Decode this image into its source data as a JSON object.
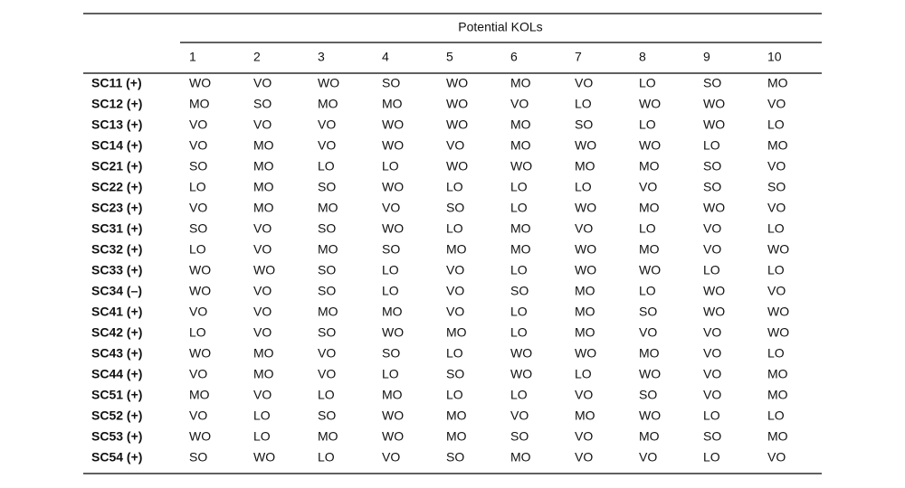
{
  "table": {
    "group_header": "Potential KOLs",
    "columns": [
      "1",
      "2",
      "3",
      "4",
      "5",
      "6",
      "7",
      "8",
      "9",
      "10"
    ],
    "rows": [
      {
        "label": "SC11 (+)",
        "cells": [
          "WO",
          "VO",
          "WO",
          "SO",
          "WO",
          "MO",
          "VO",
          "LO",
          "SO",
          "MO"
        ]
      },
      {
        "label": "SC12 (+)",
        "cells": [
          "MO",
          "SO",
          "MO",
          "MO",
          "WO",
          "VO",
          "LO",
          "WO",
          "WO",
          "VO"
        ]
      },
      {
        "label": "SC13 (+)",
        "cells": [
          "VO",
          "VO",
          "VO",
          "WO",
          "WO",
          "MO",
          "SO",
          "LO",
          "WO",
          "LO"
        ]
      },
      {
        "label": "SC14 (+)",
        "cells": [
          "VO",
          "MO",
          "VO",
          "WO",
          "VO",
          "MO",
          "WO",
          "WO",
          "LO",
          "MO"
        ]
      },
      {
        "label": "SC21 (+)",
        "cells": [
          "SO",
          "MO",
          "LO",
          "LO",
          "WO",
          "WO",
          "MO",
          "MO",
          "SO",
          "VO"
        ]
      },
      {
        "label": "SC22 (+)",
        "cells": [
          "LO",
          "MO",
          "SO",
          "WO",
          "LO",
          "LO",
          "LO",
          "VO",
          "SO",
          "SO"
        ]
      },
      {
        "label": "SC23 (+)",
        "cells": [
          "VO",
          "MO",
          "MO",
          "VO",
          "SO",
          "LO",
          "WO",
          "MO",
          "WO",
          "VO"
        ]
      },
      {
        "label": "SC31 (+)",
        "cells": [
          "SO",
          "VO",
          "SO",
          "WO",
          "LO",
          "MO",
          "VO",
          "LO",
          "VO",
          "LO"
        ]
      },
      {
        "label": "SC32 (+)",
        "cells": [
          "LO",
          "VO",
          "MO",
          "SO",
          "MO",
          "MO",
          "WO",
          "MO",
          "VO",
          "WO"
        ]
      },
      {
        "label": "SC33 (+)",
        "cells": [
          "WO",
          "WO",
          "SO",
          "LO",
          "VO",
          "LO",
          "WO",
          "WO",
          "LO",
          "LO"
        ]
      },
      {
        "label": "SC34 (–)",
        "cells": [
          "WO",
          "VO",
          "SO",
          "LO",
          "VO",
          "SO",
          "MO",
          "LO",
          "WO",
          "VO"
        ]
      },
      {
        "label": "SC41 (+)",
        "cells": [
          "VO",
          "VO",
          "MO",
          "MO",
          "VO",
          "LO",
          "MO",
          "SO",
          "WO",
          "WO"
        ]
      },
      {
        "label": "SC42 (+)",
        "cells": [
          "LO",
          "VO",
          "SO",
          "WO",
          "MO",
          "LO",
          "MO",
          "VO",
          "VO",
          "WO"
        ]
      },
      {
        "label": "SC43 (+)",
        "cells": [
          "WO",
          "MO",
          "VO",
          "SO",
          "LO",
          "WO",
          "WO",
          "MO",
          "VO",
          "LO"
        ]
      },
      {
        "label": "SC44 (+)",
        "cells": [
          "VO",
          "MO",
          "VO",
          "LO",
          "SO",
          "WO",
          "LO",
          "WO",
          "VO",
          "MO"
        ]
      },
      {
        "label": "SC51 (+)",
        "cells": [
          "MO",
          "VO",
          "LO",
          "MO",
          "LO",
          "LO",
          "VO",
          "SO",
          "VO",
          "MO"
        ]
      },
      {
        "label": "SC52 (+)",
        "cells": [
          "VO",
          "LO",
          "SO",
          "WO",
          "MO",
          "VO",
          "MO",
          "WO",
          "LO",
          "LO"
        ]
      },
      {
        "label": "SC53 (+)",
        "cells": [
          "WO",
          "LO",
          "MO",
          "WO",
          "MO",
          "SO",
          "VO",
          "MO",
          "SO",
          "MO"
        ]
      },
      {
        "label": "SC54 (+)",
        "cells": [
          "SO",
          "WO",
          "LO",
          "VO",
          "SO",
          "MO",
          "VO",
          "VO",
          "LO",
          "VO"
        ]
      }
    ]
  }
}
